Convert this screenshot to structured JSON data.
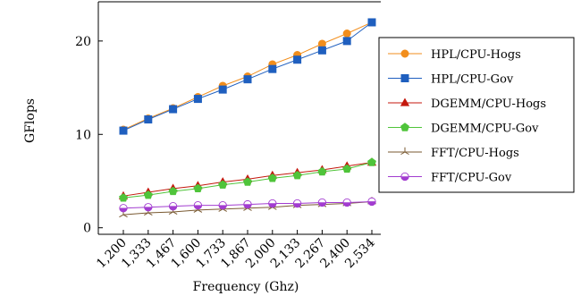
{
  "chart_data": {
    "type": "line",
    "title": "",
    "xlabel": "Frequency (Ghz)",
    "ylabel": "GFlops",
    "x": [
      1200,
      1333,
      1467,
      1600,
      1733,
      1867,
      2000,
      2133,
      2267,
      2400,
      2534
    ],
    "x_tick_labels": [
      "1,200",
      "1,333",
      "1,467",
      "1,600",
      "1,733",
      "1,867",
      "2,000",
      "2,133",
      "2,267",
      "2,400",
      "2,534"
    ],
    "y_ticks": [
      0,
      10,
      20
    ],
    "ylim": [
      -0.7,
      24.2
    ],
    "grid": false,
    "legend_position": "right",
    "series": [
      {
        "name": "HPL/CPU-Hogs",
        "color": "#f28e1c",
        "marker": "circle",
        "values": [
          10.5,
          11.7,
          12.8,
          14.0,
          15.2,
          16.2,
          17.5,
          18.5,
          19.7,
          20.8,
          22.0
        ]
      },
      {
        "name": "HPL/CPU-Gov",
        "color": "#1f5fbf",
        "marker": "square",
        "values": [
          10.4,
          11.6,
          12.7,
          13.8,
          14.8,
          15.9,
          17.0,
          18.0,
          19.0,
          20.0,
          22.0
        ]
      },
      {
        "name": "DGEMM/CPU-Hogs",
        "color": "#c4170c",
        "marker": "triangle",
        "values": [
          3.4,
          3.8,
          4.2,
          4.5,
          4.9,
          5.2,
          5.6,
          5.9,
          6.2,
          6.6,
          7.0
        ]
      },
      {
        "name": "DGEMM/CPU-Gov",
        "color": "#4fc43a",
        "marker": "pentagon",
        "values": [
          3.2,
          3.5,
          3.9,
          4.2,
          4.6,
          4.9,
          5.3,
          5.6,
          6.0,
          6.3,
          7.0
        ]
      },
      {
        "name": "FFT/CPU-Hogs",
        "color": "#7a5a32",
        "marker": "star",
        "values": [
          1.4,
          1.6,
          1.7,
          1.9,
          2.0,
          2.1,
          2.2,
          2.4,
          2.5,
          2.6,
          2.8
        ]
      },
      {
        "name": "FFT/CPU-Gov",
        "color": "#a23cd0",
        "marker": "half-circle",
        "values": [
          2.1,
          2.2,
          2.3,
          2.4,
          2.4,
          2.5,
          2.6,
          2.6,
          2.7,
          2.7,
          2.8
        ]
      }
    ]
  }
}
